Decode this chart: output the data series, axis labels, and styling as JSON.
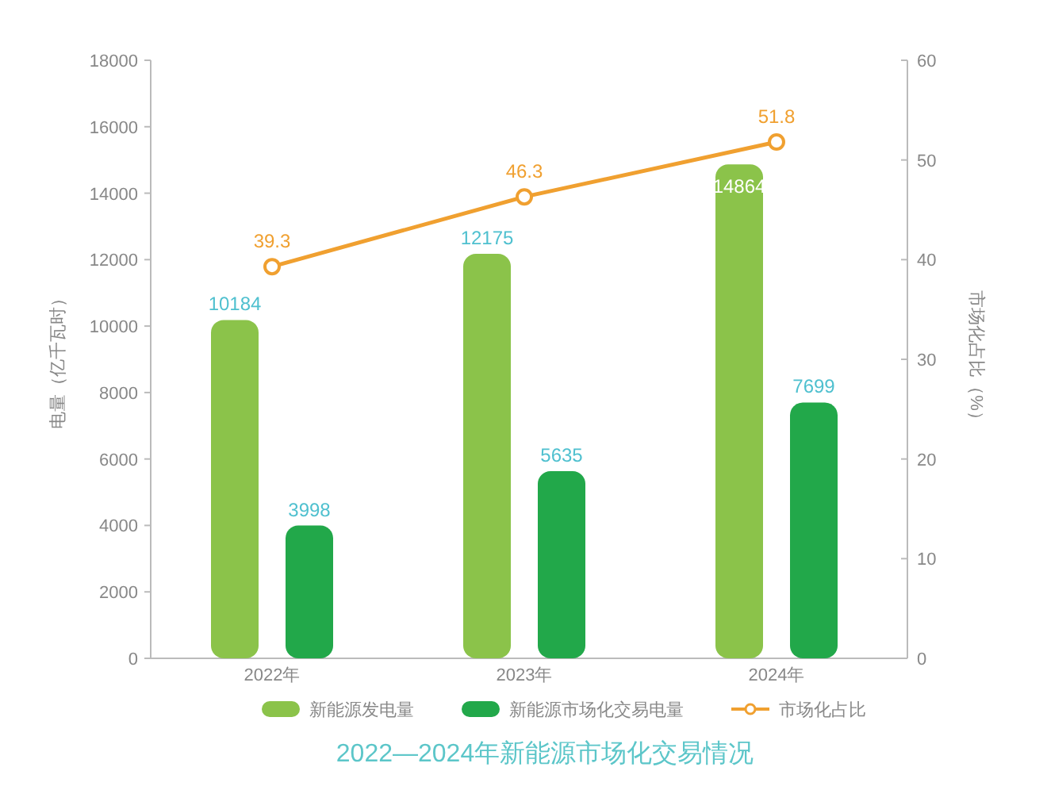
{
  "chart_data": {
    "type": "bar",
    "title": "2022—2024年新能源市场化交易情况",
    "ylabel": "电量（亿千瓦时）",
    "y2label": "市场化占比（%）",
    "categories": [
      "2022年",
      "2023年",
      "2024年"
    ],
    "series": [
      {
        "name": "新能源发电量",
        "color": "#8bc34a",
        "values": [
          10184,
          12175,
          14864
        ]
      },
      {
        "name": "新能源市场化交易电量",
        "color": "#22a84a",
        "values": [
          3998,
          5635,
          7699
        ]
      },
      {
        "name": "市场化占比",
        "type": "line",
        "axis": "y2",
        "color": "#f0a030",
        "values": [
          39.3,
          46.3,
          51.8
        ],
        "marker": "circle"
      }
    ],
    "ylim": [
      0,
      18000
    ],
    "yticks": [
      0,
      2000,
      4000,
      6000,
      8000,
      10000,
      12000,
      14000,
      16000,
      18000
    ],
    "y2lim": [
      0,
      60
    ],
    "y2ticks": [
      0,
      10,
      20,
      30,
      40,
      50,
      60
    ],
    "data_labels": true,
    "legend": "bottom",
    "grid": false
  }
}
